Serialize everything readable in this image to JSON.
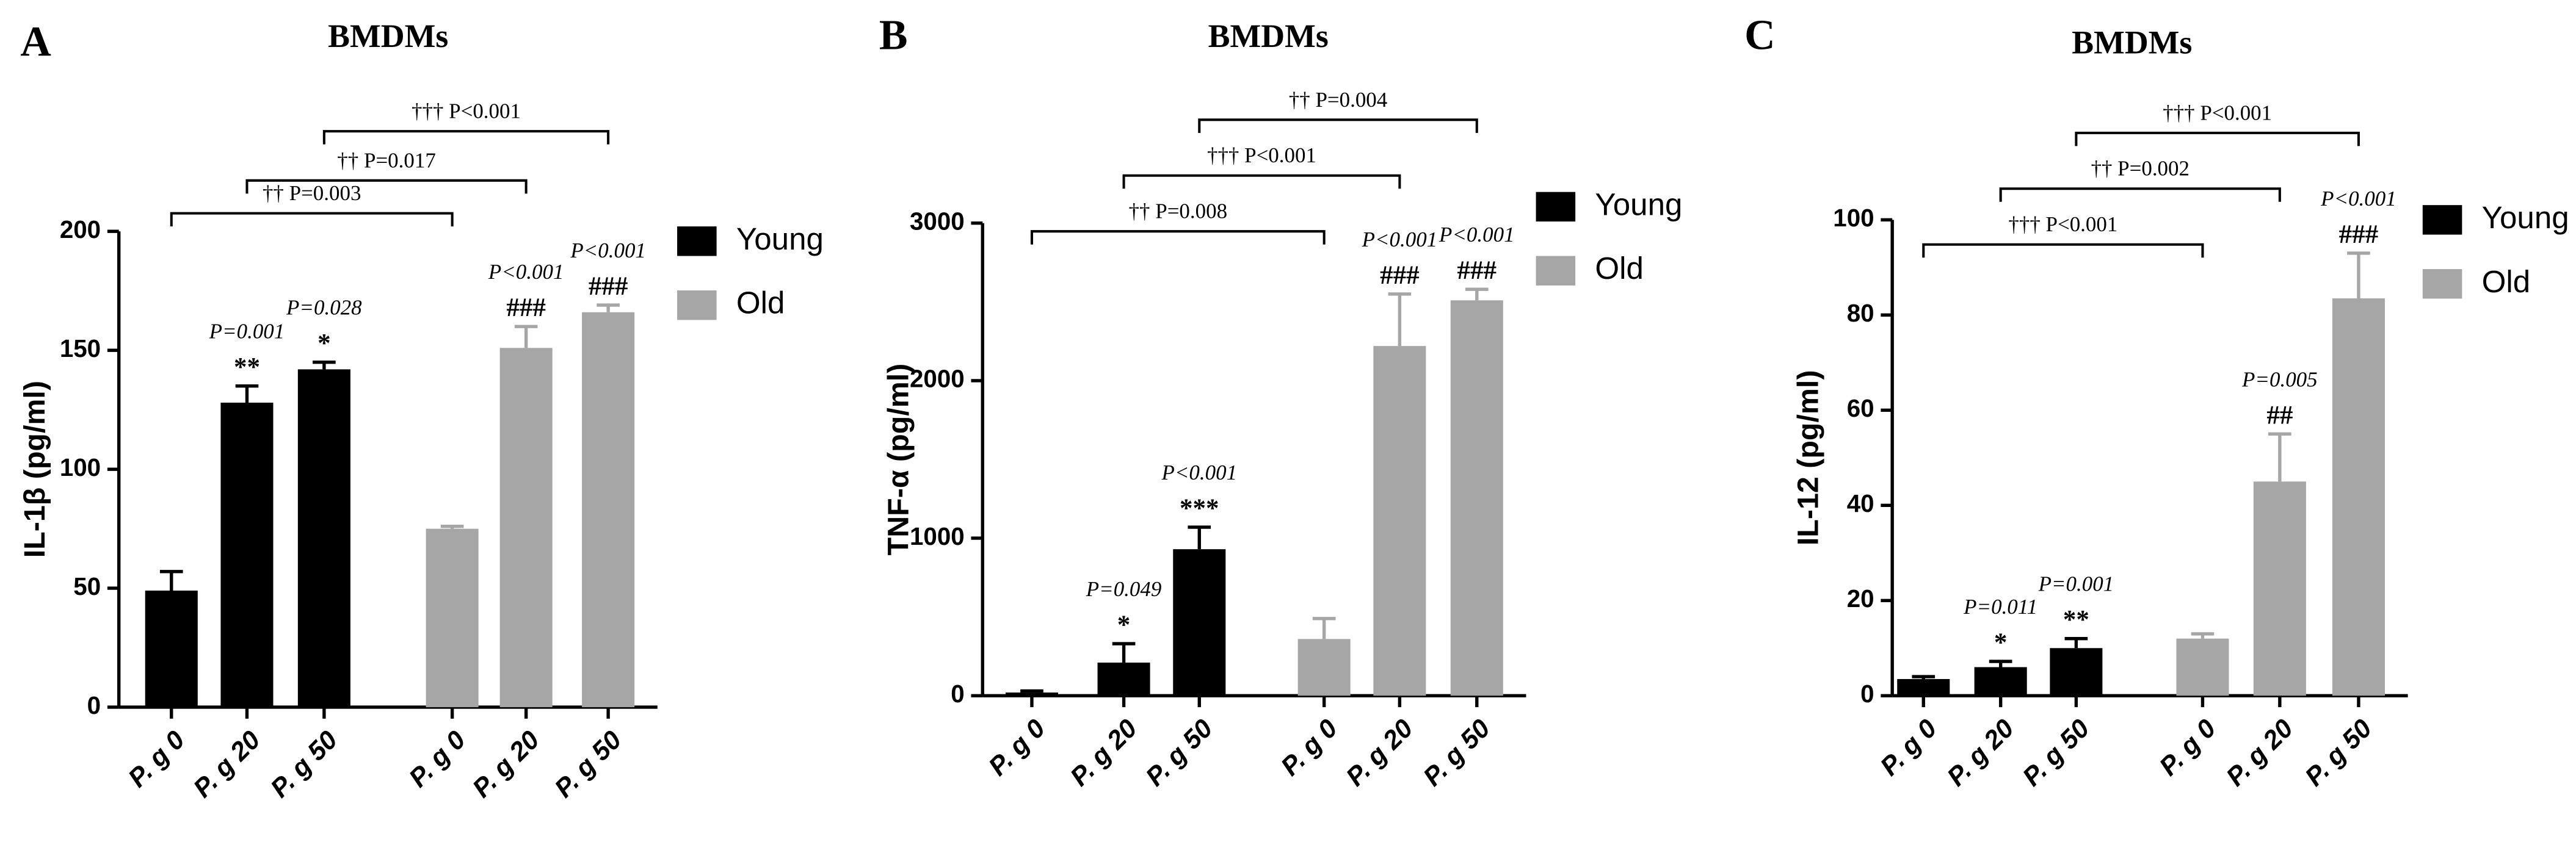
{
  "chart_data": [
    {
      "type": "bar",
      "panel": "A",
      "title": "BMDMs",
      "y_label": "IL-1β (pg/ml)",
      "categories": [
        "P. g 0",
        "P. g 20",
        "P. g 50",
        "P. g 0",
        "P. g 20",
        "P. g 50"
      ],
      "series": [
        {
          "name": "Young",
          "color": "#000000",
          "values": [
            49,
            128,
            142,
            null,
            null,
            null
          ],
          "errors": [
            8,
            7,
            3,
            null,
            null,
            null
          ]
        },
        {
          "name": "Old",
          "color": "#a6a6a6",
          "values": [
            null,
            null,
            null,
            75,
            151,
            166
          ],
          "errors": [
            null,
            null,
            null,
            1,
            9,
            3
          ]
        }
      ],
      "stars": [
        null,
        "**",
        "*",
        null,
        "###",
        "###"
      ],
      "p_labels": [
        null,
        "P=0.001",
        "P=0.028",
        null,
        "P<0.001",
        "P<0.001"
      ],
      "brackets": [
        "†† P=0.003",
        "††  P=0.017",
        "††† P<0.001"
      ],
      "ylim": [
        0,
        200
      ],
      "yticks": [
        0,
        50,
        100,
        150,
        200
      ]
    },
    {
      "type": "bar",
      "panel": "B",
      "title": "BMDMs",
      "y_label": "TNF-α (pg/ml)",
      "categories": [
        "P. g 0",
        "P. g 20",
        "P. g 50",
        "P. g 0",
        "P. g 20",
        "P. g 50"
      ],
      "series": [
        {
          "name": "Young",
          "color": "#000000",
          "values": [
            20,
            210,
            930,
            null,
            null,
            null
          ],
          "errors": [
            10,
            120,
            140,
            null,
            null,
            null
          ]
        },
        {
          "name": "Old",
          "color": "#a6a6a6",
          "values": [
            null,
            null,
            null,
            360,
            2220,
            2510
          ],
          "errors": [
            null,
            null,
            null,
            130,
            330,
            70
          ]
        }
      ],
      "stars": [
        null,
        "*",
        "***",
        null,
        "###",
        "###"
      ],
      "p_labels": [
        null,
        "P=0.049",
        "P<0.001",
        null,
        "P<0.001",
        "P<0.001"
      ],
      "brackets": [
        "†† P=0.008",
        "††† P<0.001",
        "†† P=0.004"
      ],
      "ylim": [
        0,
        3000
      ],
      "yticks": [
        0,
        1000,
        2000,
        3000
      ]
    },
    {
      "type": "bar",
      "panel": "C",
      "title": "BMDMs",
      "y_label": "IL-12 (pg/ml)",
      "categories": [
        "P. g 0",
        "P. g 20",
        "P. g 50",
        "P. g 0",
        "P. g 20",
        "P. g 50"
      ],
      "series": [
        {
          "name": "Young",
          "color": "#000000",
          "values": [
            3.5,
            6,
            10,
            null,
            null,
            null
          ],
          "errors": [
            0.5,
            1.2,
            2,
            null,
            null,
            null
          ]
        },
        {
          "name": "Old",
          "color": "#a6a6a6",
          "values": [
            null,
            null,
            null,
            12,
            45,
            83.5
          ],
          "errors": [
            null,
            null,
            null,
            1,
            10,
            9.5
          ]
        }
      ],
      "stars": [
        null,
        "*",
        "**",
        null,
        "##",
        "###"
      ],
      "p_labels": [
        null,
        "P=0.011",
        "P=0.001",
        null,
        "P=0.005",
        "P<0.001"
      ],
      "brackets": [
        "††† P<0.001",
        "†† P=0.002",
        "††† P<0.001"
      ],
      "ylim": [
        0,
        100
      ],
      "yticks": [
        0,
        20,
        40,
        60,
        80,
        100
      ]
    }
  ]
}
